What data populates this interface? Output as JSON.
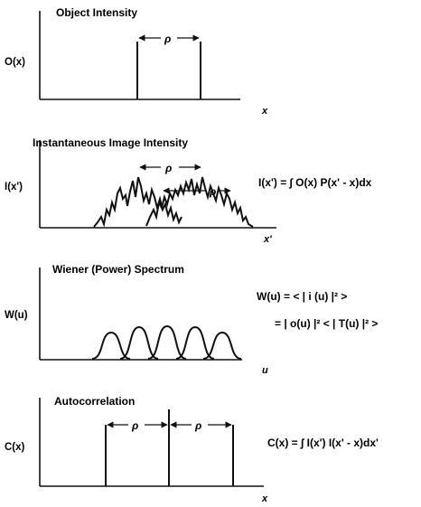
{
  "panels": [
    {
      "title": "Object Intensity",
      "ylabel": "O(x)",
      "xlabel": "x",
      "separation_label": "ρ"
    },
    {
      "title": "Instantaneous Image Intensity",
      "ylabel": "I(x')",
      "xlabel": "x'",
      "separation_label": "ρ",
      "equation": "I(x') = ∫ O(x) P(x' - x)dx"
    },
    {
      "title": "Wiener (Power) Spectrum",
      "ylabel": "W(u)",
      "xlabel": "u",
      "equation_line1": "W(u) = < | i (u) |² >",
      "equation_line2": "= | o(u) |² < | T(u) |² >"
    },
    {
      "title": "Autocorrelation",
      "ylabel": "C(x)",
      "xlabel": "x",
      "separation_label": "ρ",
      "equation": "C(x) = ∫ I(x') I(x' - x)dx'"
    }
  ]
}
